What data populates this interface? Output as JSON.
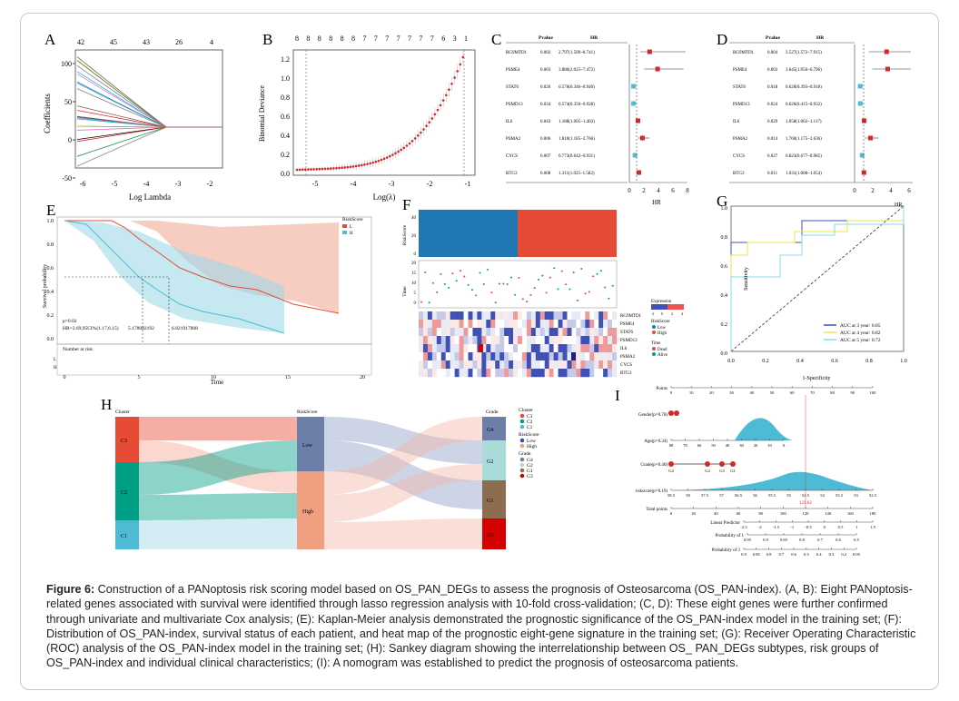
{
  "panels": {
    "A": {
      "label": "A",
      "top_ticks": [
        "42",
        "45",
        "43",
        "26",
        "4"
      ],
      "y_ticks": [
        "100",
        "50",
        "0",
        "-50"
      ],
      "x_ticks": [
        "-6",
        "-5",
        "-4",
        "-3",
        "-2"
      ],
      "ylabel": "Coefficients",
      "xlabel": "Log Lambda"
    },
    "B": {
      "label": "B",
      "top_ticks": [
        "8",
        "8",
        "8",
        "8",
        "8",
        "8",
        "7",
        "7",
        "7",
        "7",
        "7",
        "7",
        "7",
        "6",
        "3",
        "1"
      ],
      "y_ticks": [
        "1.2",
        "1.0",
        "0.8",
        "0.6",
        "0.4",
        "0.2",
        "0.0"
      ],
      "x_ticks": [
        "-5",
        "-4",
        "-3",
        "-2",
        "-1"
      ],
      "ylabel": "Binomial Deviance",
      "xlabel": "Log(λ)"
    },
    "C": {
      "label": "C",
      "col_p": "Pvalue",
      "col_hr": "HR",
      "rows": [
        {
          "gene": "RG9MTD1",
          "p": "0.002",
          "hr": "2.797(1.509~8.741)"
        },
        {
          "gene": "PSME4",
          "p": "0.003",
          "hr": "3.886(2.025~7.472)"
        },
        {
          "gene": "STAT6",
          "p": "0.026",
          "hr": "0.576(0.346~0.940)"
        },
        {
          "gene": "PSMD13",
          "p": "0.034",
          "hr": "0.574(0.350~0.928)"
        },
        {
          "gene": "IL6",
          "p": "0.043",
          "hr": "1.188(1.005~1.403)"
        },
        {
          "gene": "PSMA2",
          "p": "0.006",
          "hr": "1.810(1.185~2.766)"
        },
        {
          "gene": "CYCS",
          "p": "0.007",
          "hr": "0.773(0.642~0.931)"
        },
        {
          "gene": "BTG3",
          "p": "0.008",
          "hr": "1.311(1.025~1.582)"
        }
      ],
      "axis_ticks": [
        "0",
        "2",
        "4",
        "6",
        "8"
      ],
      "xlabel": "HR"
    },
    "D": {
      "label": "D",
      "col_p": "Pvalue",
      "col_hr": "HR",
      "rows": [
        {
          "gene": "RG9MTD1",
          "p": "0.004",
          "hr": "3.527(1.572~7.915)"
        },
        {
          "gene": "PSME4",
          "p": "0.003",
          "hr": "3.645(1.950~6.796)"
        },
        {
          "gene": "STAT6",
          "p": "0.018",
          "hr": "0.620(0.393~0.918)"
        },
        {
          "gene": "PSMD13",
          "p": "0.024",
          "hr": "0.626(0.415~0.932)"
        },
        {
          "gene": "IL6",
          "p": "0.029",
          "hr": "1.058(1.002~1.117)"
        },
        {
          "gene": "PSMA2",
          "p": "0.014",
          "hr": "1.760(1.175~2.636)"
        },
        {
          "gene": "CYCS",
          "p": "0.027",
          "hr": "0.823(0.677~0.985)"
        },
        {
          "gene": "BTG3",
          "p": "0.011",
          "hr": "1.031(1.008~1.054)"
        }
      ],
      "axis_ticks": [
        "0",
        "2",
        "4",
        "6"
      ],
      "xlabel": "HR"
    },
    "E": {
      "label": "E",
      "legend_title": "RiskScore",
      "legend_items": [
        "L",
        "H"
      ],
      "y_ticks": [
        "1.0",
        "0.8",
        "0.6",
        "0.4",
        "0.2",
        "0.0"
      ],
      "x_ticks": [
        "0",
        "5",
        "10",
        "15",
        "20"
      ],
      "ylabel": "Survival probability",
      "xlabel": "Time",
      "pval": "p=0.02",
      "hr_text": "HR=2.69,95CI%(1.17,6.15)",
      "med1": "5.178082192",
      "med2": "6.821917808",
      "risk_title": "Number at risk",
      "risk_rows": [
        "L",
        "H"
      ]
    },
    "F": {
      "label": "F",
      "y1": "RiskScore",
      "y2": "Time",
      "y1_ticks": [
        "40",
        "20",
        "0"
      ],
      "y2_ticks": [
        "20",
        "15",
        "10",
        "5",
        "0"
      ],
      "genes": [
        "RG9MTD1",
        "PSME4",
        "STAT6",
        "PSMD13",
        "IL6",
        "PSMA2",
        "CYCS",
        "BTG3"
      ],
      "legend_expr": "Expression",
      "expr_ticks": [
        "-2",
        "0",
        "2",
        "4"
      ],
      "legend_risk": "RiskScore",
      "risk_items": [
        "Low",
        "High"
      ],
      "legend_time": "Time",
      "time_items": [
        "Dead",
        "Alive"
      ]
    },
    "G": {
      "label": "G",
      "y_ticks": [
        "1.0",
        "0.8",
        "0.6",
        "0.4",
        "0.2",
        "0.0"
      ],
      "x_ticks": [
        "0.0",
        "0.2",
        "0.4",
        "0.6",
        "0.8",
        "1.0"
      ],
      "ylabel": "Sensitivity",
      "xlabel": "1-Specificity",
      "legend": [
        "AUC at 3 year: 0.85",
        "AUC at 4 year: 0.82",
        "AUC at 5 year: 0.72"
      ]
    },
    "H": {
      "label": "H",
      "col1": "Cluster",
      "col2": "RiskScore",
      "col3": "Grade",
      "nodes1": [
        "C3",
        "C2",
        "C1"
      ],
      "nodes2": [
        "Low",
        "High"
      ],
      "nodes3": [
        "G4",
        "G2",
        "G1",
        "G3"
      ],
      "legend_cluster": "Cluster",
      "cluster_items": [
        "C3",
        "C2",
        "C1"
      ],
      "legend_risk": "RiskScore",
      "risk_items": [
        "Low",
        "High"
      ],
      "legend_grade": "Grade",
      "grade_items": [
        "G4",
        "G2",
        "G1",
        "G3"
      ]
    },
    "I": {
      "label": "I",
      "points_label": "Points",
      "points_ticks": [
        "0",
        "10",
        "20",
        "30",
        "40",
        "50",
        "60",
        "70",
        "80",
        "90",
        "100"
      ],
      "gender": "Gender(p=0.78)",
      "age": "Age(p=0.34)",
      "age_ticks": [
        "80",
        "70",
        "60",
        "50",
        "40",
        "30",
        "20",
        "10",
        "0"
      ],
      "grade": "Grade(p=0.40)",
      "grade_nodes": [
        "G4",
        "G2",
        "G3",
        "G1"
      ],
      "risk": "riskscore(p=0.19)",
      "risk_ticks": [
        "58.5",
        "58",
        "57.5",
        "57",
        "56.5",
        "56",
        "55.5",
        "55",
        "54.5",
        "54",
        "53.5",
        "53",
        "52.5"
      ],
      "total": "Total points",
      "total_ticks": [
        "0",
        "20",
        "40",
        "60",
        "80",
        "100",
        "120",
        "140",
        "160",
        "180"
      ],
      "total_val": "121.62",
      "lp": "Linear Predictor",
      "lp_ticks": [
        "-2.5",
        "-2",
        "-1.5",
        "-1",
        "-0.5",
        "0",
        "0.5",
        "1",
        "1.5"
      ],
      "p1": "Probability of 1",
      "p1_ticks": [
        "0.95",
        "0.9",
        "0.85",
        "0.8",
        "0.7",
        "0.6",
        "0.5"
      ],
      "p3": "Probability of 3",
      "p3_ticks": [
        "0.9",
        "0.85",
        "0.8",
        "0.7",
        "0.6",
        "0.5",
        "0.4",
        "0.3",
        "0.2",
        "0.05"
      ]
    }
  },
  "caption": {
    "head": "Figure 6:",
    "text": " Construction of a PANoptosis risk scoring model based on OS_PAN_DEGs to assess the prognosis of Osteosarcoma (OS_PAN-index). (A, B): Eight PANoptosis-related genes associated with survival were identified through lasso regression analysis with 10-fold cross-validation; (C, D): These eight genes were further confirmed through univariate and multivariate Cox analysis; (E): Kaplan-Meier analysis demonstrated the prognostic significance of the OS_PAN-index model in the training set; (F): Distribution of OS_PAN-index, survival status of each patient, and heat map of the prognostic eight-gene signature in the training set; (G): Receiver Operating Characteristic (ROC) analysis of the OS_PAN-index model in the training set; (H): Sankey diagram showing the interrelationship between OS_ PAN_DEGs subtypes, risk groups of OS_PAN-index and individual clinical characteristics; (I): A nomogram was established to predict the prognosis of osteosarcoma patients."
  },
  "colors": {
    "red": "#e64b35",
    "blue": "#1f77b4",
    "teal": "#00a087",
    "cyan": "#4dbbd5",
    "pink": "#f4b8a8"
  }
}
